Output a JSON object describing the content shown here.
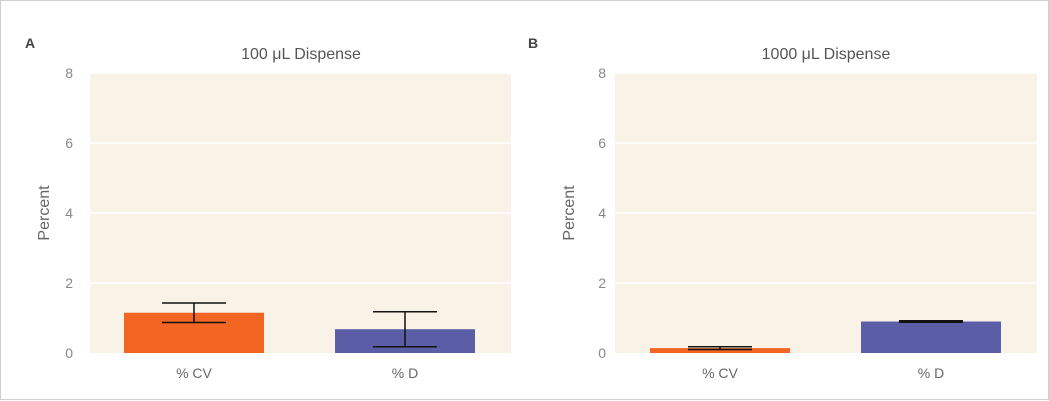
{
  "chart_data": [
    {
      "type": "bar",
      "panel": "A",
      "title": "100 μL Dispense",
      "ylabel": "Percent",
      "xlabel": "",
      "categories": [
        "% CV",
        "% D"
      ],
      "values": [
        1.15,
        0.68
      ],
      "errors": [
        0.28,
        0.5
      ],
      "colors": [
        "#f26522",
        "#5b5ea6"
      ],
      "ylim": [
        0,
        8
      ],
      "yticks": [
        "0",
        "2",
        "4",
        "6",
        "8"
      ],
      "plot_background": "#f9f2e6",
      "grid": true
    },
    {
      "type": "bar",
      "panel": "B",
      "title": "1000 μL Dispense",
      "ylabel": "Percent",
      "xlabel": "",
      "categories": [
        "% CV",
        "% D"
      ],
      "values": [
        0.14,
        0.9
      ],
      "errors": [
        0.04,
        0.02
      ],
      "colors": [
        "#f26522",
        "#5b5ea6"
      ],
      "ylim": [
        0,
        8
      ],
      "yticks": [
        "0",
        "2",
        "4",
        "6",
        "8"
      ],
      "plot_background": "#f9f2e6",
      "grid": true
    }
  ]
}
